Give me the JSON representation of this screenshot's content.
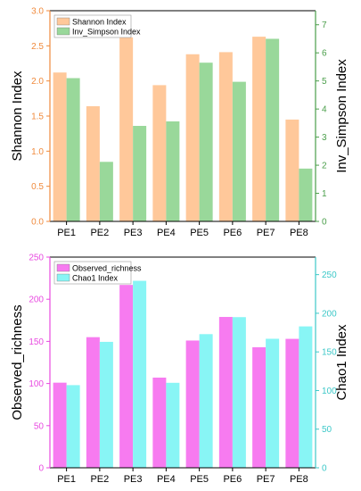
{
  "chart_data": [
    {
      "type": "bar",
      "categories": [
        "PE1",
        "PE2",
        "PE3",
        "PE4",
        "PE5",
        "PE6",
        "PE7",
        "PE8"
      ],
      "series": [
        {
          "name": "Shannon Index",
          "axis": "left",
          "color": "#FFC89A",
          "values": [
            2.12,
            1.64,
            2.62,
            1.94,
            2.38,
            2.41,
            2.63,
            1.45
          ]
        },
        {
          "name": "Inv_Simpson Index",
          "axis": "right",
          "color": "#99D89A",
          "values": [
            5.1,
            2.12,
            3.4,
            3.56,
            5.65,
            4.97,
            6.5,
            1.88
          ]
        }
      ],
      "ylabel": "Shannon Index",
      "ylabel_right": "Inv_Simpson Index",
      "ylim": [
        0,
        3.0
      ],
      "ylim_right": [
        0,
        7.5
      ],
      "yticks": [
        "0.0",
        "0.5",
        "1.0",
        "1.5",
        "2.0",
        "2.5",
        "3.0"
      ],
      "yticks_right": [
        "0",
        "1",
        "2",
        "3",
        "4",
        "5",
        "6",
        "7"
      ],
      "left_axis_color": "#f08a3c",
      "right_axis_color": "#4a9e4a",
      "legend_position": "top-left",
      "grid": false
    },
    {
      "type": "bar",
      "categories": [
        "PE1",
        "PE2",
        "PE3",
        "PE4",
        "PE5",
        "PE6",
        "PE7",
        "PE8"
      ],
      "series": [
        {
          "name": "Observed_richness",
          "axis": "left",
          "color": "#F77BF0",
          "values": [
            101,
            155,
            217,
            107,
            151,
            179,
            143,
            153
          ]
        },
        {
          "name": "Chao1 Index",
          "axis": "right",
          "color": "#88F5F5",
          "values": [
            107,
            163,
            242,
            110,
            173,
            195,
            167,
            183
          ]
        }
      ],
      "ylabel": "Observed_richness",
      "ylabel_right": "Chao1 Index",
      "ylim": [
        0,
        250
      ],
      "ylim_right": [
        0,
        272.7
      ],
      "yticks": [
        "0",
        "50",
        "100",
        "150",
        "200",
        "250"
      ],
      "yticks_right": [
        "0",
        "50",
        "100",
        "150",
        "200",
        "250"
      ],
      "left_axis_color": "#e84ae0",
      "right_axis_color": "#3cc8c8",
      "legend_position": "top-left",
      "grid": false
    }
  ]
}
